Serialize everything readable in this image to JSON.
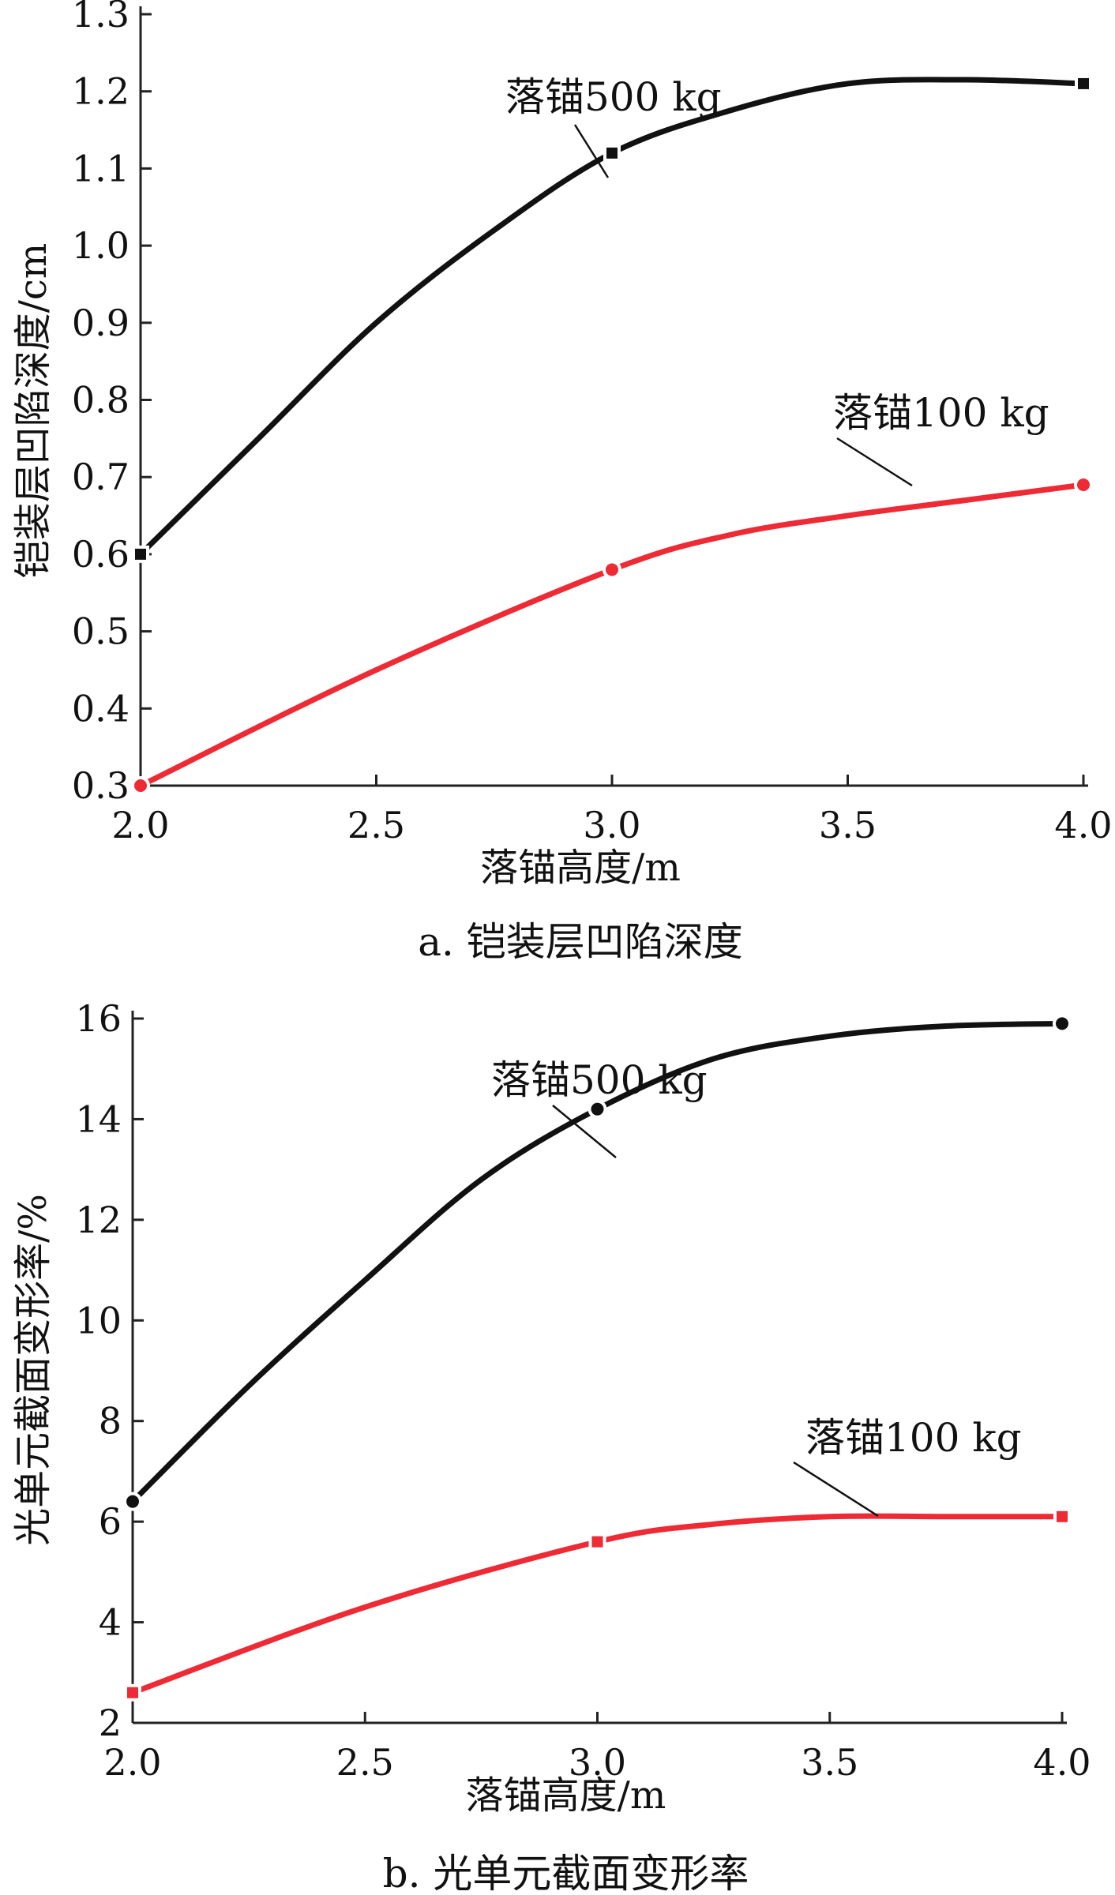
{
  "chart_data": [
    {
      "type": "line",
      "caption": "a. 铠装层凹陷深度",
      "xlabel": "落锚高度/m",
      "ylabel": "铠装层凹陷深度/cm",
      "xlim": [
        2.0,
        4.0
      ],
      "ylim": [
        0.3,
        1.3
      ],
      "xticks": [
        "2.0",
        "2.5",
        "3.0",
        "3.5",
        "4.0"
      ],
      "yticks": [
        "0.3",
        "0.4",
        "0.5",
        "0.6",
        "0.7",
        "0.8",
        "0.9",
        "1.0",
        "1.1",
        "1.2",
        "1.3"
      ],
      "grid": false,
      "series": [
        {
          "name": "落锚500 kg",
          "color": "#111111",
          "marker": "square",
          "points": [
            [
              2.0,
              0.6
            ],
            [
              3.0,
              1.12
            ],
            [
              4.0,
              1.21
            ]
          ],
          "curve": [
            [
              2.0,
              0.6
            ],
            [
              2.25,
              0.75
            ],
            [
              2.5,
              0.9
            ],
            [
              2.75,
              1.02
            ],
            [
              3.0,
              1.12
            ],
            [
              3.25,
              1.175
            ],
            [
              3.5,
              1.21
            ],
            [
              3.75,
              1.215
            ],
            [
              4.0,
              1.21
            ]
          ]
        },
        {
          "name": "落锚100 kg",
          "color": "#ee2a35",
          "marker": "circle",
          "points": [
            [
              2.0,
              0.3
            ],
            [
              3.0,
              0.58
            ],
            [
              4.0,
              0.69
            ]
          ],
          "curve": [
            [
              2.0,
              0.3
            ],
            [
              2.5,
              0.45
            ],
            [
              3.0,
              0.58
            ],
            [
              3.25,
              0.625
            ],
            [
              3.5,
              0.65
            ],
            [
              3.75,
              0.67
            ],
            [
              4.0,
              0.69
            ]
          ]
        }
      ]
    },
    {
      "type": "line",
      "caption": "b. 光单元截面变形率",
      "xlabel": "落锚高度/m",
      "ylabel": "光单元截面变形率/%",
      "xlim": [
        2.0,
        4.0
      ],
      "ylim": [
        2,
        16
      ],
      "xticks": [
        "2.0",
        "2.5",
        "3.0",
        "3.5",
        "4.0"
      ],
      "yticks": [
        "2",
        "4",
        "6",
        "8",
        "10",
        "12",
        "14",
        "16"
      ],
      "grid": false,
      "series": [
        {
          "name": "落锚500 kg",
          "color": "#111111",
          "marker": "circle",
          "points": [
            [
              2.0,
              6.4
            ],
            [
              3.0,
              14.2
            ],
            [
              4.0,
              15.9
            ]
          ],
          "curve": [
            [
              2.0,
              6.4
            ],
            [
              2.25,
              8.7
            ],
            [
              2.5,
              10.8
            ],
            [
              2.75,
              12.8
            ],
            [
              3.0,
              14.2
            ],
            [
              3.25,
              15.2
            ],
            [
              3.5,
              15.65
            ],
            [
              3.75,
              15.85
            ],
            [
              4.0,
              15.9
            ]
          ]
        },
        {
          "name": "落锚100 kg",
          "color": "#ee2a35",
          "marker": "square",
          "points": [
            [
              2.0,
              2.6
            ],
            [
              3.0,
              5.6
            ],
            [
              4.0,
              6.1
            ]
          ],
          "curve": [
            [
              2.0,
              2.6
            ],
            [
              2.5,
              4.3
            ],
            [
              3.0,
              5.6
            ],
            [
              3.25,
              5.95
            ],
            [
              3.5,
              6.1
            ],
            [
              3.75,
              6.1
            ],
            [
              4.0,
              6.1
            ]
          ]
        }
      ]
    }
  ]
}
